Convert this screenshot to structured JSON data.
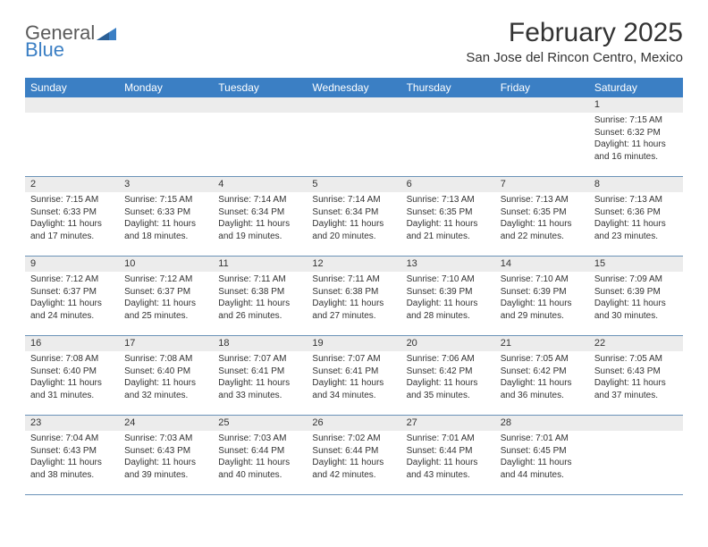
{
  "logo": {
    "line1": "General",
    "line2": "Blue"
  },
  "title": "February 2025",
  "location": "San Jose del Rincon Centro, Mexico",
  "colors": {
    "header_bg": "#3b7fc4",
    "header_text": "#ffffff",
    "band_bg": "#ececec",
    "border": "#6b93b8",
    "text": "#333333",
    "background": "#ffffff"
  },
  "day_names": [
    "Sunday",
    "Monday",
    "Tuesday",
    "Wednesday",
    "Thursday",
    "Friday",
    "Saturday"
  ],
  "weeks": [
    [
      {
        "n": "",
        "l": [
          "",
          "",
          "",
          ""
        ]
      },
      {
        "n": "",
        "l": [
          "",
          "",
          "",
          ""
        ]
      },
      {
        "n": "",
        "l": [
          "",
          "",
          "",
          ""
        ]
      },
      {
        "n": "",
        "l": [
          "",
          "",
          "",
          ""
        ]
      },
      {
        "n": "",
        "l": [
          "",
          "",
          "",
          ""
        ]
      },
      {
        "n": "",
        "l": [
          "",
          "",
          "",
          ""
        ]
      },
      {
        "n": "1",
        "l": [
          "Sunrise: 7:15 AM",
          "Sunset: 6:32 PM",
          "Daylight: 11 hours",
          "and 16 minutes."
        ]
      }
    ],
    [
      {
        "n": "2",
        "l": [
          "Sunrise: 7:15 AM",
          "Sunset: 6:33 PM",
          "Daylight: 11 hours",
          "and 17 minutes."
        ]
      },
      {
        "n": "3",
        "l": [
          "Sunrise: 7:15 AM",
          "Sunset: 6:33 PM",
          "Daylight: 11 hours",
          "and 18 minutes."
        ]
      },
      {
        "n": "4",
        "l": [
          "Sunrise: 7:14 AM",
          "Sunset: 6:34 PM",
          "Daylight: 11 hours",
          "and 19 minutes."
        ]
      },
      {
        "n": "5",
        "l": [
          "Sunrise: 7:14 AM",
          "Sunset: 6:34 PM",
          "Daylight: 11 hours",
          "and 20 minutes."
        ]
      },
      {
        "n": "6",
        "l": [
          "Sunrise: 7:13 AM",
          "Sunset: 6:35 PM",
          "Daylight: 11 hours",
          "and 21 minutes."
        ]
      },
      {
        "n": "7",
        "l": [
          "Sunrise: 7:13 AM",
          "Sunset: 6:35 PM",
          "Daylight: 11 hours",
          "and 22 minutes."
        ]
      },
      {
        "n": "8",
        "l": [
          "Sunrise: 7:13 AM",
          "Sunset: 6:36 PM",
          "Daylight: 11 hours",
          "and 23 minutes."
        ]
      }
    ],
    [
      {
        "n": "9",
        "l": [
          "Sunrise: 7:12 AM",
          "Sunset: 6:37 PM",
          "Daylight: 11 hours",
          "and 24 minutes."
        ]
      },
      {
        "n": "10",
        "l": [
          "Sunrise: 7:12 AM",
          "Sunset: 6:37 PM",
          "Daylight: 11 hours",
          "and 25 minutes."
        ]
      },
      {
        "n": "11",
        "l": [
          "Sunrise: 7:11 AM",
          "Sunset: 6:38 PM",
          "Daylight: 11 hours",
          "and 26 minutes."
        ]
      },
      {
        "n": "12",
        "l": [
          "Sunrise: 7:11 AM",
          "Sunset: 6:38 PM",
          "Daylight: 11 hours",
          "and 27 minutes."
        ]
      },
      {
        "n": "13",
        "l": [
          "Sunrise: 7:10 AM",
          "Sunset: 6:39 PM",
          "Daylight: 11 hours",
          "and 28 minutes."
        ]
      },
      {
        "n": "14",
        "l": [
          "Sunrise: 7:10 AM",
          "Sunset: 6:39 PM",
          "Daylight: 11 hours",
          "and 29 minutes."
        ]
      },
      {
        "n": "15",
        "l": [
          "Sunrise: 7:09 AM",
          "Sunset: 6:39 PM",
          "Daylight: 11 hours",
          "and 30 minutes."
        ]
      }
    ],
    [
      {
        "n": "16",
        "l": [
          "Sunrise: 7:08 AM",
          "Sunset: 6:40 PM",
          "Daylight: 11 hours",
          "and 31 minutes."
        ]
      },
      {
        "n": "17",
        "l": [
          "Sunrise: 7:08 AM",
          "Sunset: 6:40 PM",
          "Daylight: 11 hours",
          "and 32 minutes."
        ]
      },
      {
        "n": "18",
        "l": [
          "Sunrise: 7:07 AM",
          "Sunset: 6:41 PM",
          "Daylight: 11 hours",
          "and 33 minutes."
        ]
      },
      {
        "n": "19",
        "l": [
          "Sunrise: 7:07 AM",
          "Sunset: 6:41 PM",
          "Daylight: 11 hours",
          "and 34 minutes."
        ]
      },
      {
        "n": "20",
        "l": [
          "Sunrise: 7:06 AM",
          "Sunset: 6:42 PM",
          "Daylight: 11 hours",
          "and 35 minutes."
        ]
      },
      {
        "n": "21",
        "l": [
          "Sunrise: 7:05 AM",
          "Sunset: 6:42 PM",
          "Daylight: 11 hours",
          "and 36 minutes."
        ]
      },
      {
        "n": "22",
        "l": [
          "Sunrise: 7:05 AM",
          "Sunset: 6:43 PM",
          "Daylight: 11 hours",
          "and 37 minutes."
        ]
      }
    ],
    [
      {
        "n": "23",
        "l": [
          "Sunrise: 7:04 AM",
          "Sunset: 6:43 PM",
          "Daylight: 11 hours",
          "and 38 minutes."
        ]
      },
      {
        "n": "24",
        "l": [
          "Sunrise: 7:03 AM",
          "Sunset: 6:43 PM",
          "Daylight: 11 hours",
          "and 39 minutes."
        ]
      },
      {
        "n": "25",
        "l": [
          "Sunrise: 7:03 AM",
          "Sunset: 6:44 PM",
          "Daylight: 11 hours",
          "and 40 minutes."
        ]
      },
      {
        "n": "26",
        "l": [
          "Sunrise: 7:02 AM",
          "Sunset: 6:44 PM",
          "Daylight: 11 hours",
          "and 42 minutes."
        ]
      },
      {
        "n": "27",
        "l": [
          "Sunrise: 7:01 AM",
          "Sunset: 6:44 PM",
          "Daylight: 11 hours",
          "and 43 minutes."
        ]
      },
      {
        "n": "28",
        "l": [
          "Sunrise: 7:01 AM",
          "Sunset: 6:45 PM",
          "Daylight: 11 hours",
          "and 44 minutes."
        ]
      },
      {
        "n": "",
        "l": [
          "",
          "",
          "",
          ""
        ]
      }
    ]
  ]
}
